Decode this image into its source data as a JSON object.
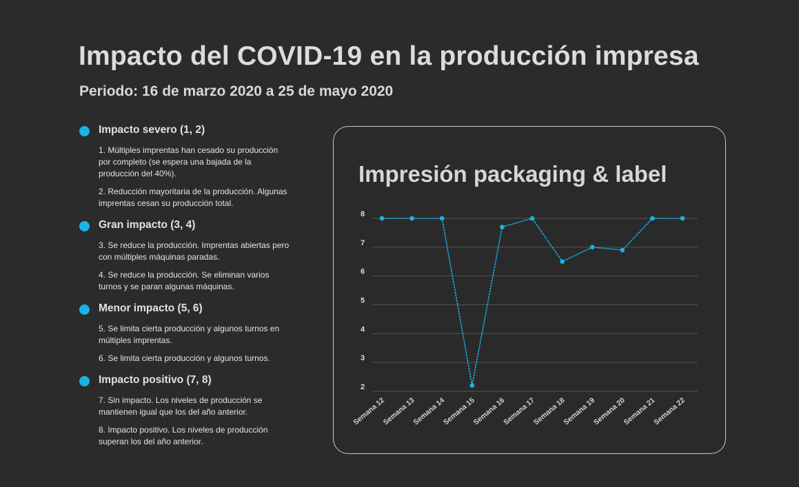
{
  "header": {
    "title": "Impacto del COVID-19 en la producción impresa",
    "subtitle": "Periodo: 16 de marzo 2020 a 25 de mayo 2020"
  },
  "legend": {
    "dot_color": "#19b4e4",
    "groups": [
      {
        "title": "Impacto severo (1, 2)",
        "items": [
          "1. Múltiples imprentas han cesado su producción por completo (se espera una bajada de la producción del 40%).",
          "2. Reducción mayoritaria de la producción. Algunas imprentas cesan su producción total."
        ]
      },
      {
        "title": "Gran impacto (3, 4)",
        "items": [
          "3. Se reduce la producción. Imprentas abiertas pero con múltiples máquinas paradas.",
          "4. Se reduce la producción. Se eliminan varios turnos y se paran algunas máquinas."
        ]
      },
      {
        "title": "Menor impacto (5, 6)",
        "items": [
          "5. Se limita cierta producción y algunos turnos en múltiples imprentas.",
          "6. Se limita cierta producción y algunos turnos."
        ]
      },
      {
        "title": "Impacto positivo (7, 8)",
        "items": [
          "7. Sin impacto. Los niveles de producción se mantienen igual que los del año anterior.",
          "8. Impacto positivo. Los niveles de producción superan los del año anterior."
        ]
      }
    ]
  },
  "chart_data": {
    "type": "line",
    "title": "Impresión packaging & label",
    "xlabel": "",
    "ylabel": "",
    "categories": [
      "Semana 12",
      "Semana 13",
      "Semana 14",
      "Semana 15",
      "Semana 16",
      "Semana 17",
      "Semana 18",
      "Semana 19",
      "Semana 20",
      "Semana 21",
      "Semana 22"
    ],
    "series": [
      {
        "values": [
          8,
          8,
          8,
          2.2,
          7.7,
          8,
          6.5,
          7,
          6.9,
          8,
          8
        ]
      }
    ],
    "yticks": [
      2,
      3,
      4,
      5,
      6,
      7,
      8
    ],
    "ylim": [
      2,
      8
    ],
    "grid": true,
    "line_style": "dotted",
    "color": "#19b4e4"
  }
}
